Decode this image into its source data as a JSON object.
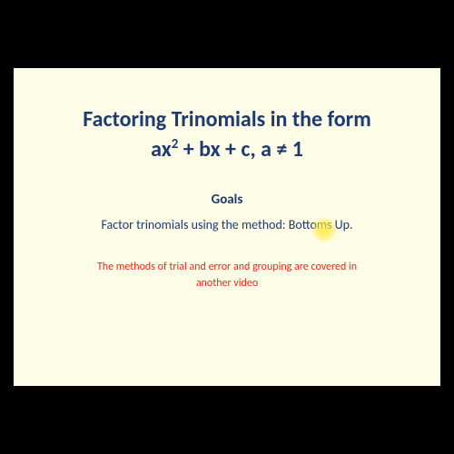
{
  "slide": {
    "background_color": "#fdfce6",
    "frame_color": "#000000",
    "title_line1": "Factoring Trinomials in the form",
    "title_line2_parts": {
      "p1": "ax",
      "sup": "2",
      "p2": " + bx + c, a ≠ 1"
    },
    "title_color": "#1f3a6e",
    "title_fontsize": 24,
    "goals_heading": "Goals",
    "goals_heading_fontsize": 15,
    "goals_body": "Factor trinomials using the method:  Bottoms Up.",
    "goals_body_fontsize": 14,
    "note_line1": "The methods of trial and error and grouping are covered in",
    "note_line2": "another video",
    "note_color": "#e22b1f",
    "note_fontsize": 12,
    "highlight": {
      "color": "#ffeb3b",
      "diameter": 28
    }
  }
}
